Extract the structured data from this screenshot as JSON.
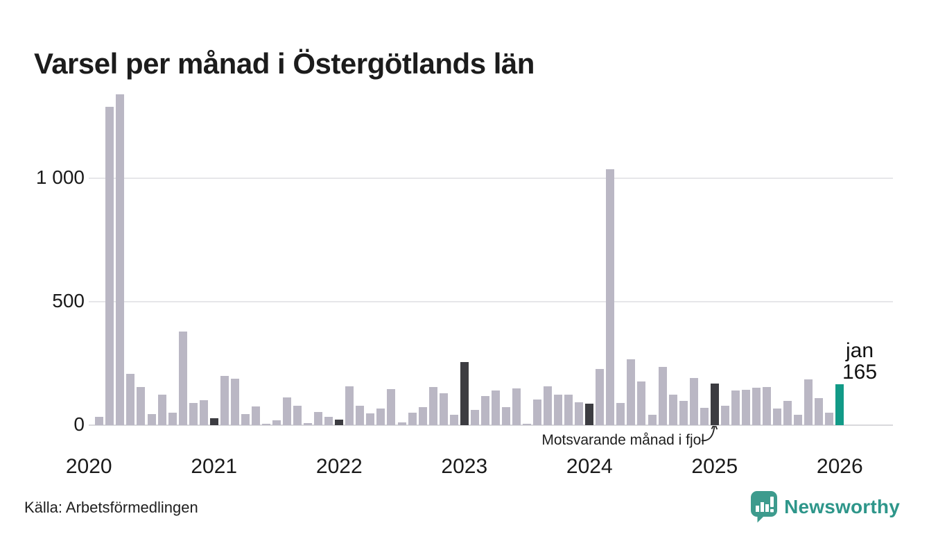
{
  "title": "Varsel per månad i Östergötlands län",
  "source": "Källa: Arbetsförmedlingen",
  "branding": {
    "name": "Newsworthy"
  },
  "colors": {
    "bar": "#bab7c4",
    "prior_january": "#3c3c41",
    "current": "#129a87",
    "grid": "#e6e6e9",
    "axis_text": "#1a1a1a",
    "brand_teal": "#3d9b8d"
  },
  "chart_data": {
    "type": "bar",
    "title": "Varsel per månad i Östergötlands län",
    "xlabel": "",
    "ylabel": "",
    "grid": "horizontal",
    "legend_position": "none",
    "ylim": [
      0,
      1400
    ],
    "yticks": {
      "values": [
        0,
        500,
        1000
      ],
      "labels": [
        "0",
        "500",
        "1 000"
      ]
    },
    "year_axis_labels": [
      "2020",
      "2021",
      "2022",
      "2023",
      "2024",
      "2025",
      "2026"
    ],
    "x": [
      "2020-02",
      "2020-03",
      "2020-04",
      "2020-05",
      "2020-06",
      "2020-07",
      "2020-08",
      "2020-09",
      "2020-10",
      "2020-11",
      "2020-12",
      "2021-01",
      "2021-02",
      "2021-03",
      "2021-04",
      "2021-05",
      "2021-06",
      "2021-07",
      "2021-08",
      "2021-09",
      "2021-10",
      "2021-11",
      "2021-12",
      "2022-01",
      "2022-02",
      "2022-03",
      "2022-04",
      "2022-05",
      "2022-06",
      "2022-07",
      "2022-08",
      "2022-09",
      "2022-10",
      "2022-11",
      "2022-12",
      "2023-01",
      "2023-02",
      "2023-03",
      "2023-04",
      "2023-05",
      "2023-06",
      "2023-07",
      "2023-08",
      "2023-09",
      "2023-10",
      "2023-11",
      "2023-12",
      "2024-01",
      "2024-02",
      "2024-03",
      "2024-04",
      "2024-05",
      "2024-06",
      "2024-07",
      "2024-08",
      "2024-09",
      "2024-10",
      "2024-11",
      "2024-12",
      "2025-01",
      "2025-02",
      "2025-03",
      "2025-04",
      "2025-05",
      "2025-06",
      "2025-07",
      "2025-08",
      "2025-09",
      "2025-10",
      "2025-11",
      "2025-12",
      "2026-01"
    ],
    "values": [
      34,
      1288,
      1337,
      208,
      154,
      45,
      123,
      50,
      380,
      90,
      100,
      28,
      199,
      188,
      45,
      76,
      6,
      20,
      112,
      79,
      8,
      53,
      34,
      22,
      157,
      79,
      48,
      67,
      146,
      11,
      50,
      73,
      155,
      130,
      43,
      256,
      62,
      118,
      140,
      73,
      149,
      6,
      104,
      157,
      124,
      124,
      93,
      87,
      228,
      1035,
      90,
      266,
      177,
      42,
      235,
      123,
      98,
      190,
      70,
      168,
      79,
      140,
      143,
      152,
      155,
      67,
      98,
      42,
      185,
      110,
      50,
      165
    ],
    "highlight_rules": {
      "dark_months": [
        "2021-01",
        "2022-01",
        "2023-01",
        "2024-01",
        "2025-01"
      ],
      "current_month": "2026-01"
    },
    "annotation": {
      "text": "Motsvarande månad i fjol",
      "target_month": "2025-01"
    },
    "current_point_label": {
      "month_text": "jan",
      "value_text": "165"
    }
  }
}
